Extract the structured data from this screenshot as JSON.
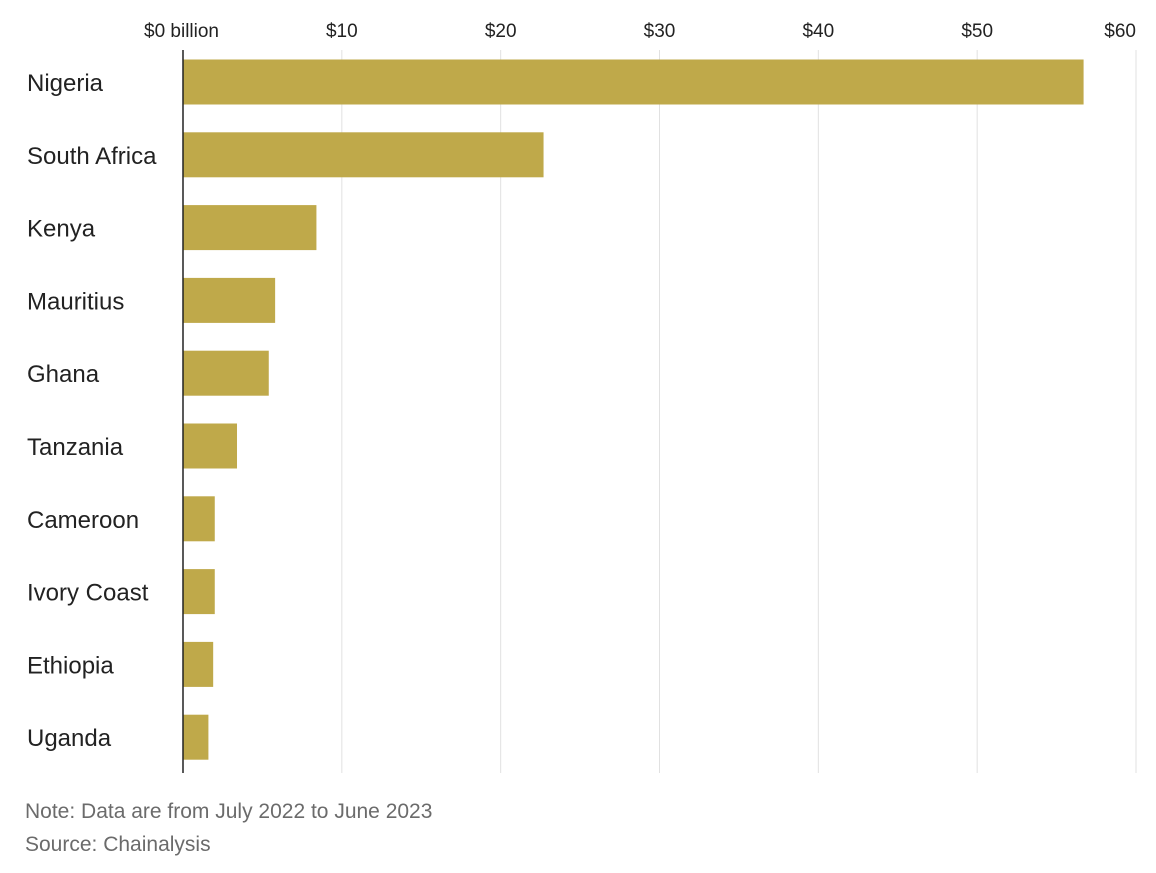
{
  "chart_data": {
    "type": "bar",
    "orientation": "horizontal",
    "categories": [
      "Nigeria",
      "South Africa",
      "Kenya",
      "Mauritius",
      "Ghana",
      "Tanzania",
      "Cameroon",
      "Ivory Coast",
      "Ethiopia",
      "Uganda"
    ],
    "values": [
      56.7,
      22.7,
      8.4,
      5.8,
      5.4,
      3.4,
      2.0,
      2.0,
      1.9,
      1.6
    ],
    "xlim": [
      0,
      60
    ],
    "x_ticks": [
      0,
      10,
      20,
      30,
      40,
      50,
      60
    ],
    "x_tick_labels": [
      "$0 billion",
      "$10",
      "$20",
      "$30",
      "$40",
      "$50",
      "$60"
    ],
    "x_axis_position": "top",
    "grid": true,
    "title": "",
    "xlabel": "",
    "ylabel": "",
    "bar_color": "#bfa94a"
  },
  "footer": {
    "note": "Note: Data are from July 2022 to June 2023",
    "source": "Source: Chainalysis"
  }
}
